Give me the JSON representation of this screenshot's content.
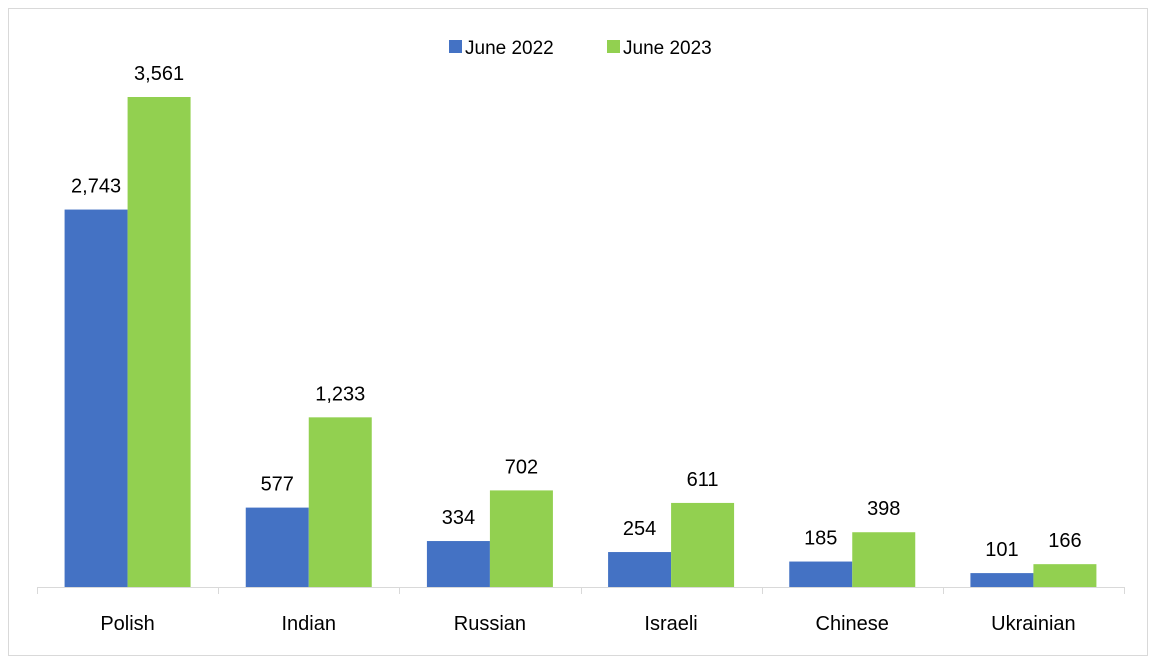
{
  "chart_data": {
    "type": "bar",
    "title": "",
    "xlabel": "",
    "ylabel": "",
    "categories": [
      "Polish",
      "Indian",
      "Russian",
      "Israeli",
      "Chinese",
      "Ukrainian"
    ],
    "series": [
      {
        "name": "June 2022",
        "color": "#4472c4",
        "values": [
          2743,
          577,
          334,
          254,
          185,
          101
        ],
        "labels": [
          "2,743",
          "577",
          "334",
          "254",
          "185",
          "101"
        ]
      },
      {
        "name": "June 2023",
        "color": "#92d050",
        "values": [
          3561,
          1233,
          702,
          611,
          398,
          166
        ],
        "labels": [
          "3,561",
          "1,233",
          "702",
          "611",
          "398",
          "166"
        ]
      }
    ],
    "ylim": [
      0,
      3561
    ],
    "grid": false,
    "legend_position": "top"
  }
}
